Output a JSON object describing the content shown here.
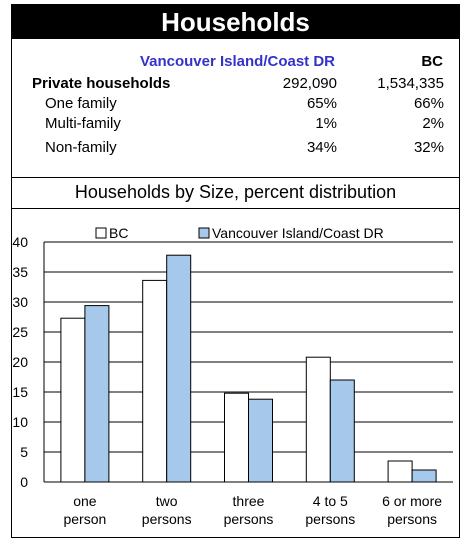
{
  "title": "Households",
  "summary": {
    "col_region": "Vancouver Island/Coast DR",
    "col_bc": "BC",
    "rows": [
      {
        "label": "Private households",
        "region": "292,090",
        "bc": "1,534,335",
        "bold": true
      },
      {
        "label": "One family",
        "region": "65%",
        "bc": "66%"
      },
      {
        "label": "Multi-family",
        "region": "1%",
        "bc": "2%"
      },
      {
        "label": "Non-family",
        "region": "34%",
        "bc": "32%"
      }
    ]
  },
  "chart_title": "Households by Size, percent distribution",
  "chart_data": {
    "type": "bar",
    "title": "Households by Size, percent distribution",
    "categories": [
      [
        "one",
        "person"
      ],
      [
        "two",
        "persons"
      ],
      [
        "three",
        "persons"
      ],
      [
        "4 to 5",
        "persons"
      ],
      [
        "6 or  more",
        "persons"
      ]
    ],
    "series": [
      {
        "name": "BC",
        "values": [
          27.3,
          33.6,
          14.8,
          20.8,
          3.5
        ],
        "color": "#ffffff"
      },
      {
        "name": "Vancouver Island/Coast DR",
        "values": [
          29.4,
          37.8,
          13.8,
          17.0,
          2.0
        ],
        "color": "#a6c8ea"
      }
    ],
    "ylim": [
      0,
      40
    ],
    "yticks": [
      "0",
      "5",
      "10",
      "15",
      "20",
      "25",
      "30",
      "35",
      "40"
    ],
    "grid": true,
    "legend": "top"
  }
}
